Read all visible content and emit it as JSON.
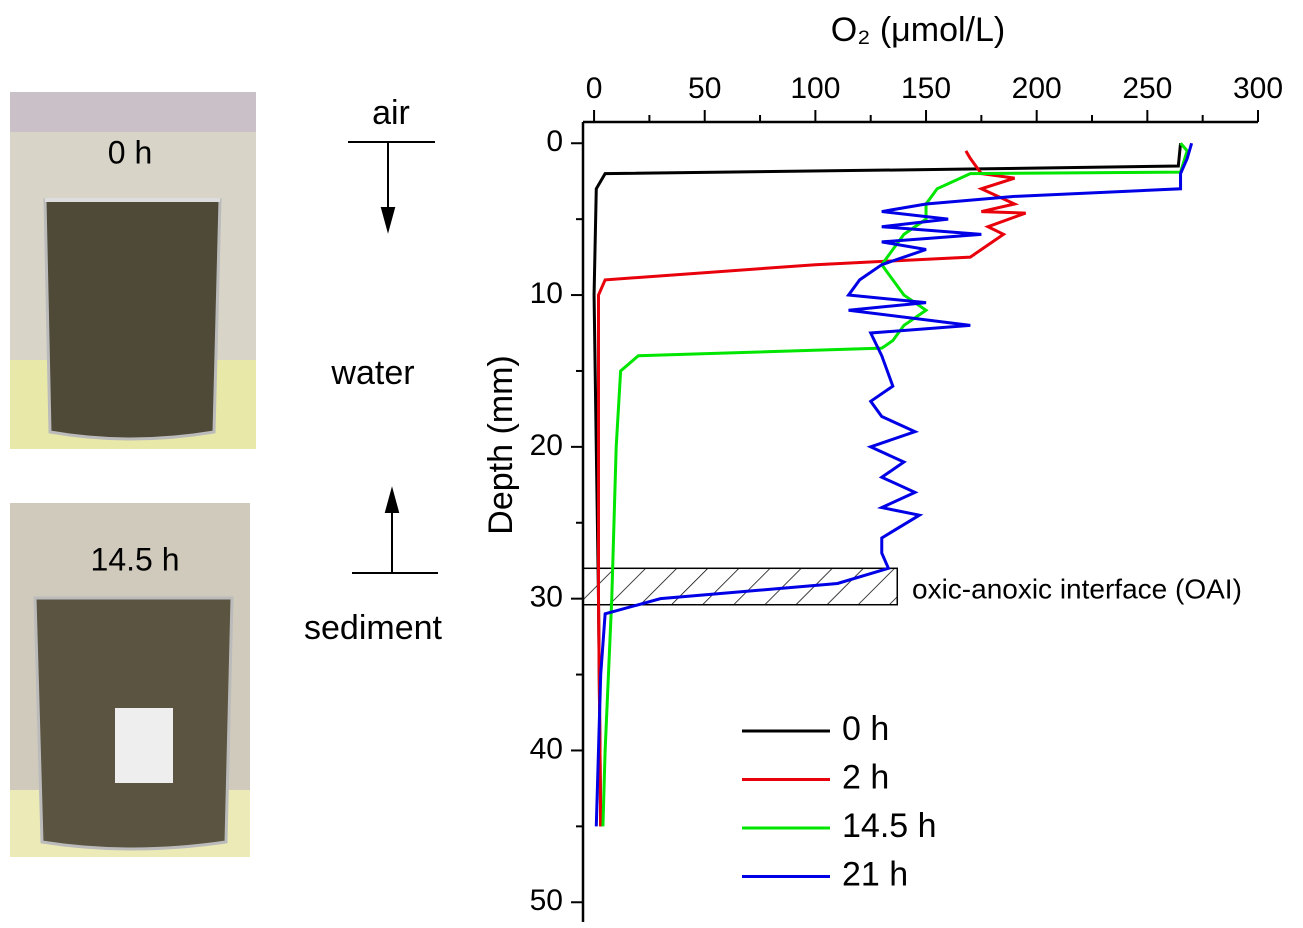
{
  "panels": {
    "photo_top_label": "0 h",
    "photo_bottom_label": "14.5 h",
    "air": "air",
    "water": "water",
    "sediment": "sediment"
  },
  "chart_data": {
    "type": "line",
    "x_label": "O₂ (μmol/L)",
    "y_label": "Depth (mm)",
    "annotation": "oxic-anoxic interface (OAI)",
    "interface_box": {
      "x": [
        -5,
        137
      ],
      "y": [
        28,
        30.4
      ]
    },
    "xlim": [
      -5,
      300
    ],
    "ylim": [
      -1.4,
      51.3
    ],
    "xticks": [
      0,
      50,
      100,
      150,
      200,
      250,
      300
    ],
    "xminorticks": [
      25,
      75,
      125,
      175,
      225,
      275
    ],
    "yticks": [
      0,
      10,
      20,
      30,
      40,
      50
    ],
    "yminorticks": [
      5,
      15,
      25,
      35,
      45
    ],
    "series": [
      {
        "name": "0 h",
        "color": "#000000",
        "x": [
          265,
          264,
          170,
          5,
          1,
          0,
          1,
          2,
          3
        ],
        "y": [
          0,
          1.5,
          1.7,
          2,
          3,
          10,
          20,
          30,
          45
        ]
      },
      {
        "name": "2 h",
        "color": "#e8000b",
        "x": [
          168,
          170,
          175,
          190,
          175,
          190,
          175,
          195,
          178,
          185,
          175,
          170,
          100,
          5,
          2,
          2,
          2,
          3
        ],
        "y": [
          0.5,
          1,
          2,
          2.3,
          3,
          4,
          4.5,
          4.6,
          5.5,
          6,
          7,
          7.5,
          8,
          9,
          10,
          20,
          30,
          45
        ]
      },
      {
        "name": "14.5 h",
        "color": "#00e600",
        "x": [
          265,
          268,
          265,
          170,
          155,
          150,
          150,
          140,
          135,
          130,
          140,
          150,
          140,
          135,
          130,
          20,
          12,
          10,
          8,
          5,
          4
        ],
        "y": [
          0,
          0.5,
          1.9,
          2,
          3,
          4,
          5,
          6,
          7,
          8,
          10,
          11,
          12,
          13,
          13.5,
          14,
          15,
          20,
          30,
          40,
          45
        ]
      },
      {
        "name": "21 h",
        "color": "#0000e6",
        "x": [
          270,
          268,
          265,
          265,
          190,
          150,
          130,
          160,
          130,
          175,
          130,
          150,
          130,
          120,
          115,
          150,
          115,
          170,
          125,
          130,
          135,
          125,
          130,
          145,
          125,
          140,
          130,
          145,
          130,
          147,
          130,
          130,
          133,
          110,
          30,
          5,
          3,
          2,
          1
        ],
        "y": [
          0,
          1,
          2,
          3,
          3.5,
          4,
          4.5,
          5,
          5.5,
          6,
          6.5,
          7,
          8,
          9,
          10,
          10.5,
          11,
          12,
          12.5,
          14,
          16,
          17,
          18,
          19,
          20,
          21,
          22,
          23,
          24,
          24.5,
          26,
          27,
          28,
          29,
          30,
          31,
          35,
          40,
          45
        ]
      }
    ]
  }
}
